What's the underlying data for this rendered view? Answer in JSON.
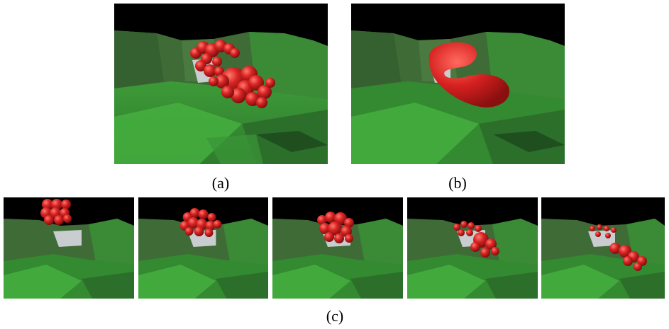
{
  "figure": {
    "caption_a": "(a)",
    "caption_b": "(b)",
    "caption_c": "(c)"
  },
  "panels": {
    "a": {
      "fluid": "particles",
      "frame": "a"
    },
    "b": {
      "fluid": "surface",
      "frame": "b"
    },
    "c": [
      {
        "fluid": "particles",
        "frame": "c1"
      },
      {
        "fluid": "particles",
        "frame": "c2"
      },
      {
        "fluid": "particles",
        "frame": "c3"
      },
      {
        "fluid": "particles",
        "frame": "c4"
      },
      {
        "fluid": "particles",
        "frame": "c5"
      }
    ]
  },
  "colors": {
    "background": "#000000",
    "terrain_light": "#3fa83a",
    "terrain_dark": "#1f5a1f",
    "cliff": "#3d6a35",
    "container": "#c9cdd0",
    "fluid": "#d32222"
  }
}
